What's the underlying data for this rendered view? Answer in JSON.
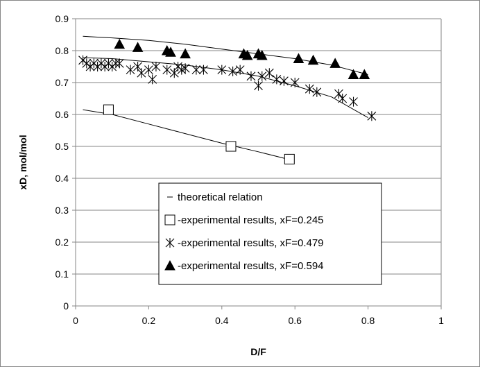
{
  "chart_data": {
    "type": "scatter",
    "xlabel": "D/F",
    "ylabel": "xD, mol/mol",
    "xlim": [
      0,
      1
    ],
    "ylim": [
      0,
      0.9
    ],
    "x_ticks": [
      0,
      0.2,
      0.4,
      0.6,
      0.8,
      1
    ],
    "x_tick_labels": [
      "0",
      "0.2",
      "0.4",
      "0.6",
      "0.8",
      "1"
    ],
    "y_ticks": [
      0,
      0.1,
      0.2,
      0.3,
      0.4,
      0.5,
      0.6,
      0.7,
      0.8,
      0.9
    ],
    "y_tick_labels": [
      "0",
      "0.1",
      "0.2",
      "0.3",
      "0.4",
      "0.5",
      "0.6",
      "0.7",
      "0.8",
      "0.9"
    ],
    "grid": "horizontal",
    "legend": {
      "placement": "center",
      "entries": [
        {
          "marker": "line",
          "label": "theoretical relation"
        },
        {
          "marker": "square",
          "label": "-experimental results, xF=0.245"
        },
        {
          "marker": "asterisk",
          "label": "-experimental results, xF=0.479"
        },
        {
          "marker": "triangle",
          "label": "-experimental results, xF=0.594"
        }
      ]
    },
    "lines": [
      {
        "x": [
          0.02,
          0.1,
          0.2,
          0.3,
          0.4,
          0.5,
          0.58
        ],
        "y": [
          0.615,
          0.6,
          0.57,
          0.54,
          0.51,
          0.483,
          0.46
        ]
      },
      {
        "x": [
          0.02,
          0.1,
          0.2,
          0.3,
          0.4,
          0.5,
          0.6,
          0.7,
          0.8
        ],
        "y": [
          0.778,
          0.775,
          0.765,
          0.755,
          0.74,
          0.72,
          0.69,
          0.655,
          0.59
        ]
      },
      {
        "x": [
          0.02,
          0.1,
          0.2,
          0.3,
          0.4,
          0.5,
          0.6,
          0.7,
          0.8
        ],
        "y": [
          0.845,
          0.84,
          0.832,
          0.82,
          0.805,
          0.79,
          0.775,
          0.755,
          0.725
        ]
      }
    ],
    "series": [
      {
        "marker": "square",
        "x": [
          0.09,
          0.425,
          0.585
        ],
        "y": [
          0.615,
          0.5,
          0.46
        ]
      },
      {
        "marker": "asterisk",
        "x": [
          0.02,
          0.03,
          0.04,
          0.05,
          0.06,
          0.07,
          0.08,
          0.09,
          0.1,
          0.11,
          0.12,
          0.15,
          0.17,
          0.18,
          0.2,
          0.21,
          0.22,
          0.25,
          0.27,
          0.28,
          0.29,
          0.3,
          0.33,
          0.35,
          0.4,
          0.43,
          0.45,
          0.48,
          0.5,
          0.51,
          0.53,
          0.55,
          0.57,
          0.6,
          0.64,
          0.66,
          0.72,
          0.73,
          0.76,
          0.81
        ],
        "y": [
          0.77,
          0.76,
          0.75,
          0.76,
          0.75,
          0.76,
          0.75,
          0.76,
          0.75,
          0.76,
          0.76,
          0.74,
          0.75,
          0.73,
          0.74,
          0.71,
          0.75,
          0.74,
          0.73,
          0.75,
          0.74,
          0.745,
          0.74,
          0.74,
          0.74,
          0.735,
          0.74,
          0.72,
          0.69,
          0.72,
          0.73,
          0.71,
          0.705,
          0.7,
          0.68,
          0.67,
          0.665,
          0.65,
          0.64,
          0.595
        ]
      },
      {
        "marker": "triangle",
        "x": [
          0.12,
          0.17,
          0.25,
          0.26,
          0.3,
          0.46,
          0.47,
          0.5,
          0.51,
          0.61,
          0.65,
          0.71,
          0.76,
          0.79
        ],
        "y": [
          0.82,
          0.81,
          0.8,
          0.795,
          0.79,
          0.79,
          0.785,
          0.79,
          0.785,
          0.775,
          0.77,
          0.76,
          0.725,
          0.725
        ]
      }
    ]
  }
}
